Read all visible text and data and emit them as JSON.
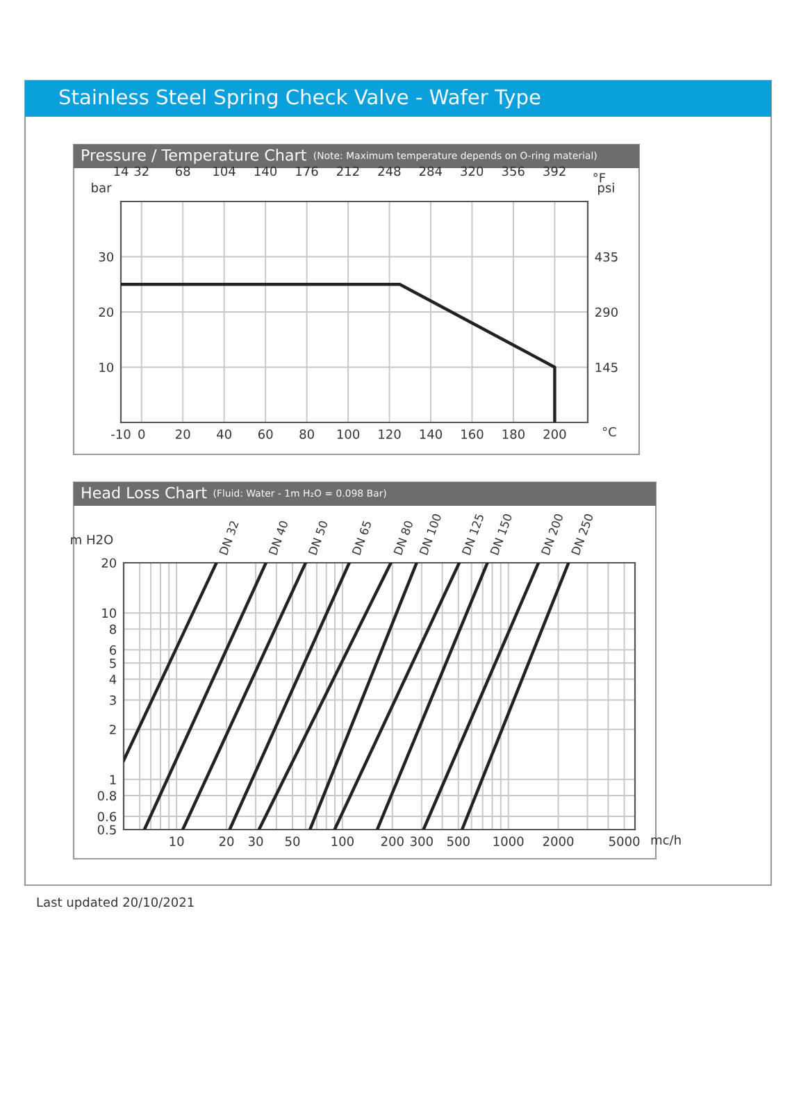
{
  "chart_data": [
    {
      "type": "line",
      "title": "Pressure / Temperature Chart",
      "subtitle": "(Note: Maximum temperature depends on O-ring material)",
      "xlabel": "°C",
      "ylabel": "bar",
      "y2label": "psi",
      "x2label": "°F",
      "xlim": [
        -10,
        216
      ],
      "xticks": [
        -10,
        0,
        20,
        40,
        60,
        80,
        100,
        120,
        140,
        160,
        180,
        200
      ],
      "x2lim": [
        14,
        421
      ],
      "x2ticks": [
        14,
        32,
        68,
        104,
        140,
        176,
        212,
        248,
        284,
        320,
        356,
        392
      ],
      "ylim": [
        0,
        40
      ],
      "yticks": [
        10,
        20,
        30
      ],
      "y2lim": [
        0,
        580
      ],
      "y2ticks": [
        145,
        290,
        435
      ],
      "grid": true,
      "series": [
        {
          "color": "#222222",
          "x": [
            -10,
            125,
            200,
            200
          ],
          "values": [
            25,
            25,
            10,
            0
          ]
        }
      ],
      "annotations": [
        "Stainless Steel Spring Check Valve - Wafer Type"
      ]
    },
    {
      "type": "line",
      "title": "Head Loss Chart",
      "subtitle": "(Fluid: Water - 1m H₂O = 0.098 Bar)",
      "xlabel": "mc/h",
      "ylabel": "m H2O",
      "log": "xy",
      "xlim": [
        4.8,
        5800
      ],
      "ylim": [
        0.5,
        20
      ],
      "xticks": [
        {
          "value": 6,
          "label": null
        },
        {
          "value": 7,
          "label": null
        },
        {
          "value": 8,
          "label": null
        },
        {
          "value": 9,
          "label": null
        },
        10,
        20,
        30,
        {
          "value": 40,
          "label": null
        },
        50,
        {
          "value": 60,
          "label": null
        },
        {
          "value": 70,
          "label": null
        },
        {
          "value": 80,
          "label": null
        },
        {
          "value": 90,
          "label": null
        },
        100,
        200,
        300,
        {
          "value": 400,
          "label": null
        },
        500,
        {
          "value": 600,
          "label": null
        },
        {
          "value": 700,
          "label": null
        },
        {
          "value": 800,
          "label": null
        },
        {
          "value": 900,
          "label": null
        },
        1000,
        2000,
        {
          "value": 3000,
          "label": null
        },
        {
          "value": 4000,
          "label": null
        },
        5000
      ],
      "yticks": [
        0.5,
        0.6,
        0.8,
        1,
        2,
        3,
        4,
        5,
        6,
        8,
        10,
        20
      ],
      "grid": true,
      "series": [
        {
          "name": "DN 32",
          "color": "#222222",
          "x": [
            4.8,
            17.4
          ],
          "values": [
            1.3,
            20
          ]
        },
        {
          "name": "DN 40",
          "color": "#222222",
          "x": [
            6.4,
            34.6
          ],
          "values": [
            0.5,
            20
          ]
        },
        {
          "name": "DN 50",
          "color": "#222222",
          "x": [
            10.9,
            60
          ],
          "values": [
            0.5,
            20
          ]
        },
        {
          "name": "DN 65",
          "color": "#222222",
          "x": [
            20.9,
            110
          ],
          "values": [
            0.5,
            20
          ]
        },
        {
          "name": "DN 80",
          "color": "#222222",
          "x": [
            31.4,
            196
          ],
          "values": [
            0.5,
            20
          ]
        },
        {
          "name": "DN 100",
          "color": "#222222",
          "x": [
            63.7,
            280
          ],
          "values": [
            0.5,
            20
          ]
        },
        {
          "name": "DN 125",
          "color": "#222222",
          "x": [
            89.7,
            506
          ],
          "values": [
            0.5,
            20
          ]
        },
        {
          "name": "DN 150",
          "color": "#222222",
          "x": [
            162,
            748
          ],
          "values": [
            0.5,
            20
          ]
        },
        {
          "name": "DN 200",
          "color": "#222222",
          "x": [
            308,
            1520
          ],
          "values": [
            0.5,
            20
          ]
        },
        {
          "name": "DN 250",
          "color": "#222222",
          "x": [
            526,
            2307
          ],
          "values": [
            0.5,
            20
          ]
        }
      ],
      "annotations": [
        "Last updated 20/10/2021"
      ]
    }
  ]
}
